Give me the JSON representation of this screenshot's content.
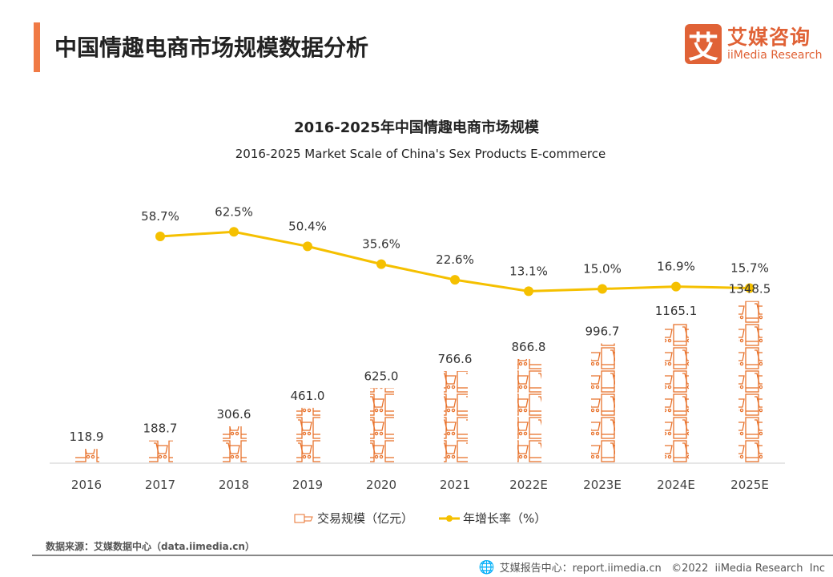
{
  "header": {
    "title": "中国情趣电商市场规模数据分析"
  },
  "logo": {
    "mark": "艾",
    "cn": "艾媒咨询",
    "en": "iiMedia Research"
  },
  "chart_data": {
    "type": "bar+line",
    "title": "2016-2025年中国情趣电商市场规模",
    "subtitle": "2016-2025 Market Scale of China's Sex Products E-commerce",
    "categories": [
      "2016",
      "2017",
      "2018",
      "2019",
      "2020",
      "2021",
      "2022E",
      "2023E",
      "2024E",
      "2025E"
    ],
    "series": [
      {
        "name": "交易规模（亿元）",
        "type": "pictogram-bar",
        "color": "#e8722c",
        "values": [
          118.9,
          188.7,
          306.6,
          461.0,
          625.0,
          766.6,
          866.8,
          996.7,
          1165.1,
          1348.5
        ],
        "labels": [
          "118.9",
          "188.7",
          "306.6",
          "461.0",
          "625.0",
          "766.6",
          "866.8",
          "996.7",
          "1165.1",
          "1348.5"
        ]
      },
      {
        "name": "年增长率（%）",
        "type": "line",
        "color": "#f5c000",
        "values": [
          null,
          58.7,
          62.5,
          50.4,
          35.6,
          22.6,
          13.1,
          15.0,
          16.9,
          15.7
        ],
        "labels": [
          "",
          "58.7%",
          "62.5%",
          "50.4%",
          "35.6%",
          "22.6%",
          "13.1%",
          "15.0%",
          "16.9%",
          "15.7%"
        ]
      }
    ],
    "legend": "bottom",
    "grid": false
  },
  "source": "数据来源：艾媒数据中心（data.iimedia.cn）",
  "footer": "艾媒报告中心：report.iimedia.cn   ©2022  iiMedia Research  Inc"
}
